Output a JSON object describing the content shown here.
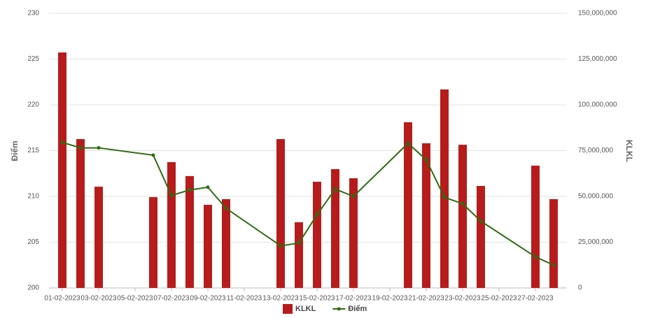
{
  "chart_data": {
    "type": "bar-line",
    "ylabel": "Điểm",
    "y2label": "KLKL",
    "ylim": [
      200,
      230
    ],
    "yticks": [
      200,
      205,
      210,
      215,
      220,
      225,
      230
    ],
    "y2lim": [
      0,
      150000000
    ],
    "y2ticks": [
      {
        "value": 0,
        "label": "0"
      },
      {
        "value": 25000000,
        "label": "25,000,000"
      },
      {
        "value": 50000000,
        "label": "50,000,000"
      },
      {
        "value": 75000000,
        "label": "75,000,000"
      },
      {
        "value": 100000000,
        "label": "100,000,000"
      },
      {
        "value": 125000000,
        "label": "125,000,000"
      },
      {
        "value": 150000000,
        "label": "150,000,000"
      }
    ],
    "xticks": [
      "01-02-2023",
      "03-02-2023",
      "05-02-2023",
      "07-02-2023",
      "09-02-2023",
      "11-02-2023",
      "13-02-2023",
      "15-02-2023",
      "17-02-2023",
      "19-02-2023",
      "21-02-2023",
      "23-02-2023",
      "25-02-2023",
      "27-02-2023"
    ],
    "x": [
      "01-02-2023",
      "02-02-2023",
      "03-02-2023",
      "06-02-2023",
      "07-02-2023",
      "08-02-2023",
      "09-02-2023",
      "10-02-2023",
      "13-02-2023",
      "14-02-2023",
      "15-02-2023",
      "16-02-2023",
      "17-02-2023",
      "20-02-2023",
      "21-02-2023",
      "22-02-2023",
      "23-02-2023",
      "24-02-2023",
      "27-02-2023",
      "28-02-2023"
    ],
    "grid": true,
    "legend": "bottom",
    "series": [
      {
        "name": "KLKL",
        "type": "bar",
        "axis": "y2",
        "color": "#b71c1c",
        "values": [
          128600000,
          81300000,
          55300000,
          49600000,
          68700000,
          61100000,
          45400000,
          48500000,
          81300000,
          35900000,
          58000000,
          64900000,
          59900000,
          90500000,
          79000000,
          108400000,
          78200000,
          55700000,
          66800000,
          48500000
        ]
      },
      {
        "name": "Điểm",
        "type": "line",
        "axis": "y",
        "color": "#2e6b12",
        "values": [
          215.9,
          215.3,
          215.3,
          214.5,
          210.1,
          210.7,
          211.0,
          208.7,
          204.6,
          204.9,
          208.0,
          210.8,
          210.0,
          215.8,
          214.0,
          209.9,
          209.2,
          207.3,
          203.4,
          202.5
        ]
      }
    ]
  }
}
